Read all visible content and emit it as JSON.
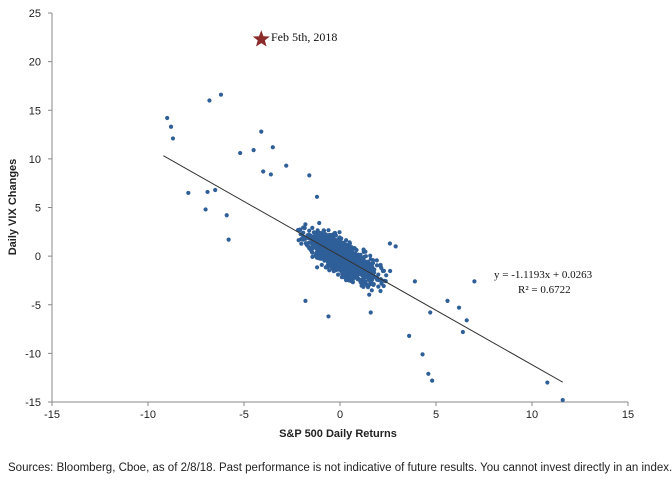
{
  "chart_data": {
    "type": "scatter",
    "xlabel": "S&P 500 Daily Returns",
    "ylabel": "Daily VIX Changes",
    "xlim": [
      -15,
      15
    ],
    "ylim": [
      -15,
      25
    ],
    "x_ticks": [
      "-15",
      "-10",
      "-5",
      "0",
      "5",
      "10",
      "15"
    ],
    "y_ticks": [
      "25",
      "20",
      "15",
      "10",
      "5",
      "0",
      "-5",
      "-10",
      "-15"
    ],
    "grid": false,
    "marker_color": "#2f5f98",
    "trendline": {
      "slope": -1.1193,
      "intercept": 0.0263,
      "x_range": [
        -9.2,
        11.6
      ],
      "color": "#333333",
      "equation_label": "y = -1.1193x + 0.0263",
      "r2_label": "R² = 0.6722"
    },
    "annotation": {
      "label": "Feb 5th, 2018",
      "x": -4.1,
      "y": 22.3,
      "marker": "star",
      "color": "#8b2b2b"
    },
    "highlighted_points": [
      {
        "x": -9.0,
        "y": 14.2
      },
      {
        "x": -8.8,
        "y": 13.3
      },
      {
        "x": -8.7,
        "y": 12.1
      },
      {
        "x": -6.8,
        "y": 16.0
      },
      {
        "x": -6.2,
        "y": 16.6
      },
      {
        "x": -4.1,
        "y": 12.8
      },
      {
        "x": -4.5,
        "y": 10.9
      },
      {
        "x": -3.5,
        "y": 11.2
      },
      {
        "x": -5.2,
        "y": 10.6
      },
      {
        "x": -4.0,
        "y": 8.7
      },
      {
        "x": -3.6,
        "y": 8.4
      },
      {
        "x": -7.9,
        "y": 6.5
      },
      {
        "x": -6.9,
        "y": 6.6
      },
      {
        "x": -6.5,
        "y": 6.8
      },
      {
        "x": -7.0,
        "y": 4.8
      },
      {
        "x": -5.9,
        "y": 4.2
      },
      {
        "x": -5.8,
        "y": 1.7
      },
      {
        "x": -2.8,
        "y": 9.3
      },
      {
        "x": -1.6,
        "y": 8.3
      },
      {
        "x": -1.2,
        "y": 6.1
      },
      {
        "x": -1.8,
        "y": -4.6
      },
      {
        "x": -0.6,
        "y": -6.2
      },
      {
        "x": 1.6,
        "y": -5.8
      },
      {
        "x": 4.3,
        "y": -10.1
      },
      {
        "x": 4.6,
        "y": -12.1
      },
      {
        "x": 4.8,
        "y": -12.8
      },
      {
        "x": 10.8,
        "y": -13.0
      },
      {
        "x": 11.6,
        "y": -14.8
      },
      {
        "x": 7.0,
        "y": -2.6
      },
      {
        "x": 6.2,
        "y": -5.3
      },
      {
        "x": 6.4,
        "y": -7.8
      },
      {
        "x": 6.6,
        "y": -6.6
      },
      {
        "x": 5.6,
        "y": -4.6
      },
      {
        "x": 4.7,
        "y": -5.8
      },
      {
        "x": 3.6,
        "y": -8.2
      },
      {
        "x": 3.9,
        "y": -2.6
      },
      {
        "x": 2.6,
        "y": 1.3
      },
      {
        "x": 2.9,
        "y": 1.0
      }
    ],
    "cluster_description": {
      "count": 1400,
      "center_x": 0.1,
      "x_spread": 1.2,
      "y_noise": 1.15
    }
  },
  "footer": {
    "source_note": "Sources: Bloomberg, Cboe, as of 2/8/18. Past performance is not indicative of future results. You cannot invest directly in an index."
  }
}
